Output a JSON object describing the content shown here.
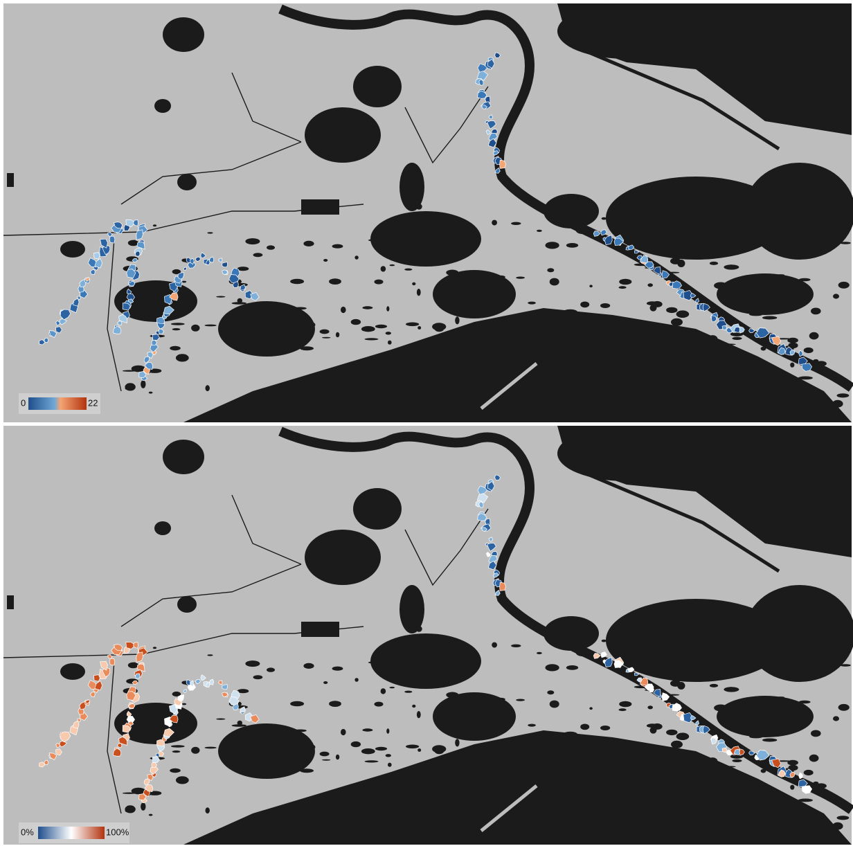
{
  "panels": [
    {
      "legend": {
        "min": "0",
        "max": "22"
      }
    },
    {
      "legend": {
        "min": "0%",
        "max": "100%"
      }
    }
  ]
}
